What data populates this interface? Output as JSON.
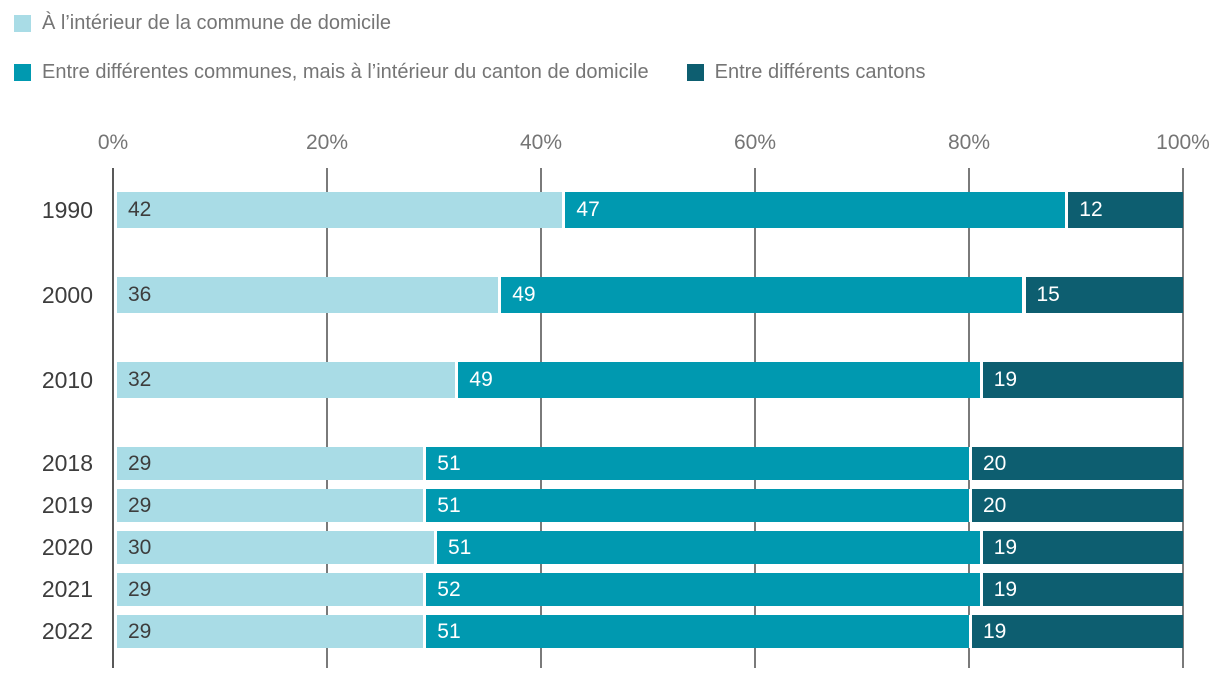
{
  "legend": {
    "items": [
      {
        "label": "À l’intérieur de la commune de domicile",
        "color": "#a9dce6"
      },
      {
        "label": "Entre différentes communes, mais à l’intérieur du canton de domicile",
        "color": "#0099b0"
      },
      {
        "label": "Entre différents cantons",
        "color": "#0d5e70"
      }
    ]
  },
  "axis": {
    "tick_labels": [
      "0%",
      "20%",
      "40%",
      "60%",
      "80%",
      "100%"
    ]
  },
  "chart_data": {
    "type": "bar",
    "orientation": "horizontal",
    "stacked": true,
    "unit": "%",
    "categories": [
      "1990",
      "2000",
      "2010",
      "2018",
      "2019",
      "2020",
      "2021",
      "2022"
    ],
    "series": [
      {
        "name": "À l’intérieur de la commune de domicile",
        "color": "#a9dce6",
        "label_color": "#3d3d3d",
        "values": [
          42,
          36,
          32,
          29,
          29,
          30,
          29,
          29
        ]
      },
      {
        "name": "Entre différentes communes, mais à l’intérieur du canton de domicile",
        "color": "#0099b0",
        "label_color": "#ffffff",
        "values": [
          47,
          49,
          49,
          51,
          51,
          51,
          52,
          51
        ]
      },
      {
        "name": "Entre différents cantons",
        "color": "#0d5e70",
        "label_color": "#ffffff",
        "values": [
          12,
          15,
          19,
          20,
          20,
          19,
          19,
          19
        ]
      }
    ],
    "xlim": [
      0,
      100
    ],
    "tick_labels": [
      "0%",
      "20%",
      "40%",
      "60%",
      "80%",
      "100%"
    ],
    "grid": true,
    "legend_position": "top",
    "title": ""
  }
}
